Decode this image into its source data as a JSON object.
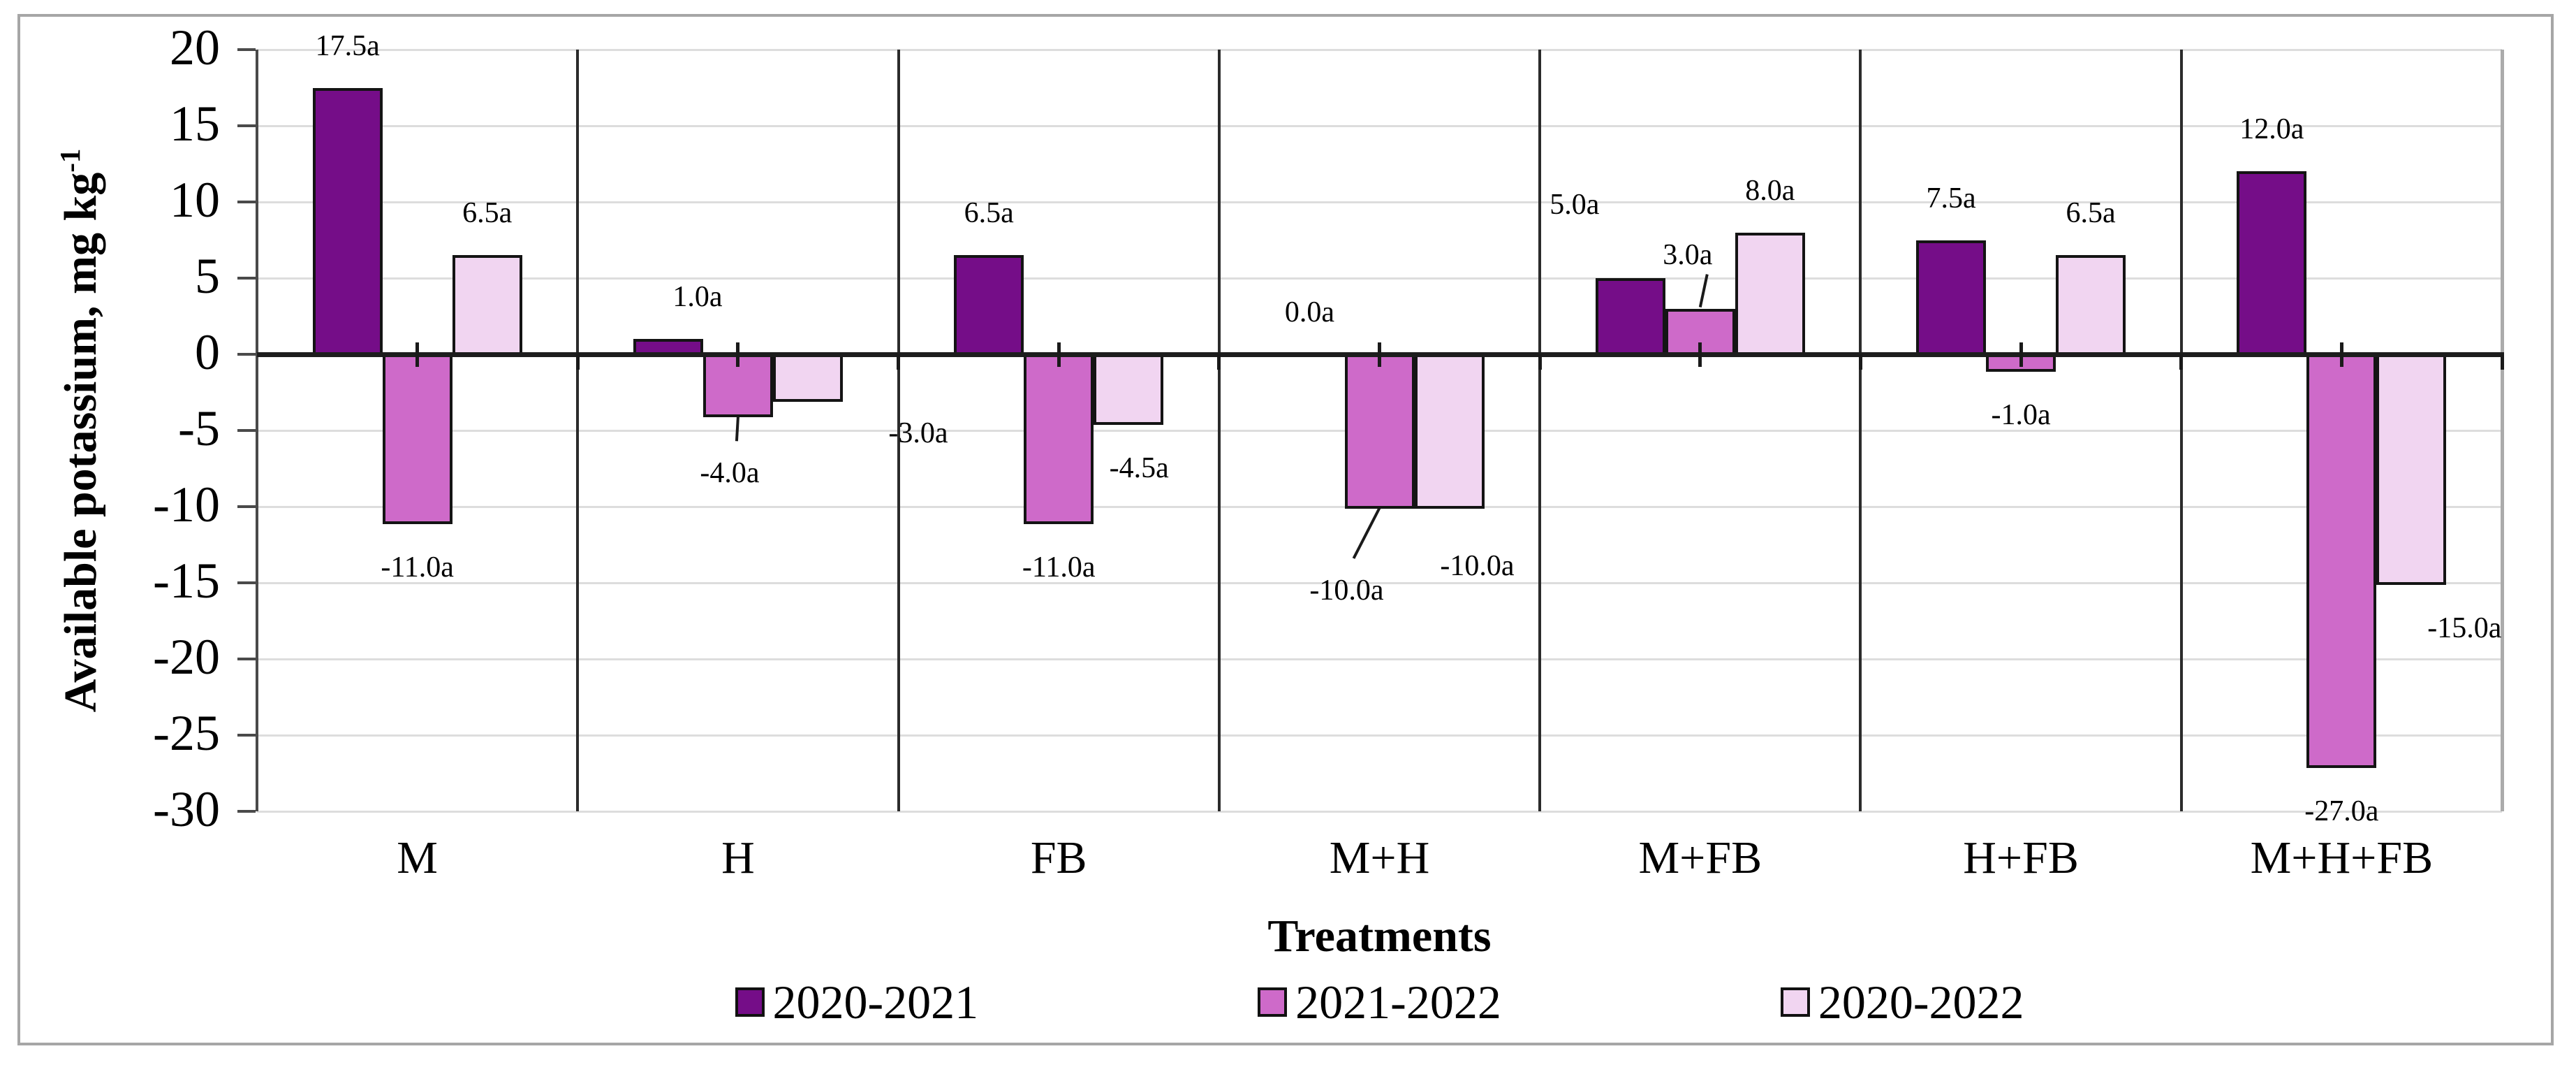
{
  "chart_data": {
    "type": "bar",
    "title": "",
    "xlabel": "Treatments",
    "ylabel": "Available potassium, mg kg-1",
    "ylabel_main": "Available potassium, mg kg",
    "ylabel_sup": "-1",
    "ylim": [
      -30,
      20
    ],
    "ytick_step": 5,
    "yticks": [
      20,
      15,
      10,
      5,
      0,
      -5,
      -10,
      -15,
      -20,
      -25,
      -30
    ],
    "grid": "horizontal-light-gray",
    "legend_position": "bottom",
    "categories": [
      "M",
      "H",
      "FB",
      "M+H",
      "M+FB",
      "H+FB",
      "M+H+FB"
    ],
    "series": [
      {
        "name": "2020-2021",
        "color": "#750D88",
        "values": [
          17.5,
          1.0,
          6.5,
          0.0,
          5.0,
          7.5,
          12.0
        ],
        "labels": [
          "17.5a",
          "1.0a",
          "6.5a",
          "0.0a",
          "5.0a",
          "7.5a",
          "12.0a"
        ]
      },
      {
        "name": "2021-2022",
        "color": "#CE6AC9",
        "values": [
          -11.0,
          -4.0,
          -11.0,
          -10.0,
          3.0,
          -1.0,
          -27.0
        ],
        "labels": [
          "-11.0a",
          "-4.0a",
          "-11.0a",
          "-10.0a",
          "3.0a",
          "-1.0a",
          "-27.0a"
        ]
      },
      {
        "name": "2020-2022",
        "color": "#F1D5F1",
        "values": [
          6.5,
          -3.0,
          -4.5,
          -10.0,
          8.0,
          6.5,
          -15.0
        ],
        "labels": [
          "6.5a",
          "-3.0a",
          "-4.5a",
          "-10.0a",
          "8.0a",
          "6.5a",
          "-15.0a"
        ]
      }
    ],
    "style_colors": {
      "bar_border": "#141414",
      "zero_line": "#1d1d1d",
      "gridline": "#dddddd",
      "category_boundary_line": "#2b2b2b",
      "axis_line": "#4a4a4a",
      "figure_border": "#a6a6a6",
      "text": "#000000"
    },
    "layout_hints": {
      "zero_axis_ticks_at_category_centers_and_boundaries": true,
      "label_overrides": {
        "0_1": {
          "dx": 42,
          "dy": 0
        },
        "1_1": {
          "dx": -12,
          "dy": 18,
          "leader": true
        },
        "2_1": {
          "dx": 158,
          "dy": -17
        },
        "2_2": {
          "dx": 15,
          "dy": 0
        },
        "1_3": {
          "dx": -47,
          "dy": 55,
          "leader": true
        },
        "2_3": {
          "dx": 40,
          "dy": 20
        },
        "0_4": {
          "dx": -80,
          "dy": -45
        },
        "1_4": {
          "dx": -18,
          "dy": -17,
          "leader": true
        },
        "2_6": {
          "dx": 76,
          "dy": 0
        }
      }
    }
  }
}
